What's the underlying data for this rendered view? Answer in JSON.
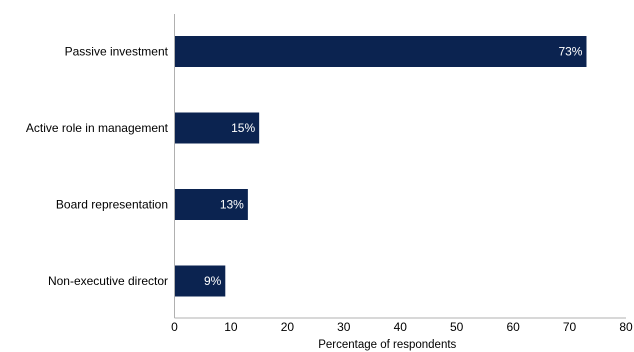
{
  "chart_data": {
    "type": "bar",
    "orientation": "horizontal",
    "categories": [
      "Passive investment",
      "Active role in management",
      "Board representation",
      "Non-executive director"
    ],
    "values": [
      73,
      15,
      13,
      9
    ],
    "data_labels": [
      "73%",
      "15%",
      "13%",
      "9%"
    ],
    "xlabel": "Percentage of respondents",
    "ylabel": "",
    "xlim": [
      0,
      80
    ],
    "xticks": [
      0,
      10,
      20,
      30,
      40,
      50,
      60,
      70,
      80
    ],
    "grid": false,
    "legend": "none",
    "colors": {
      "bar": "#0b2350",
      "axis": "#b0b0b0",
      "data_label": "#ffffff"
    }
  }
}
